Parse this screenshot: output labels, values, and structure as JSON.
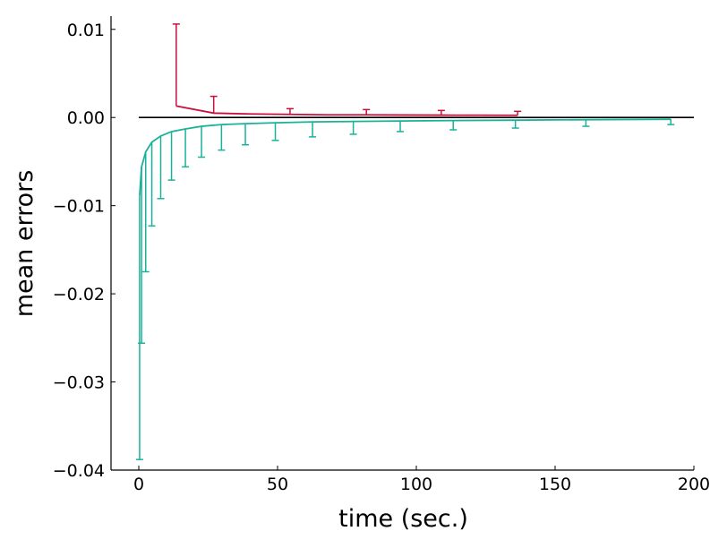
{
  "chart_data": {
    "type": "line",
    "title": "",
    "xlabel": "time (sec.)",
    "ylabel": "mean errors",
    "xlim": [
      -10,
      200
    ],
    "ylim": [
      -0.04,
      0.0115
    ],
    "xticks": [
      0,
      50,
      100,
      150,
      200
    ],
    "xtick_labels": [
      "0",
      "50",
      "100",
      "150",
      "200"
    ],
    "yticks": [
      -0.04,
      -0.03,
      -0.02,
      -0.01,
      0.0,
      0.01
    ],
    "ytick_labels": [
      "−0.04",
      "−0.03",
      "−0.02",
      "−0.01",
      "0.00",
      "0.01"
    ],
    "grid": false,
    "reference_line": {
      "y": 0.0,
      "x_range": [
        0,
        200
      ],
      "color": "#000000"
    },
    "series": [
      {
        "color": "#c8103e",
        "x": [
          13.5,
          27,
          40,
          54.5,
          68,
          82,
          95,
          109,
          122,
          136.5
        ],
        "y": [
          0.0013,
          0.0005,
          0.0004,
          0.00035,
          0.0003,
          0.0003,
          0.00028,
          0.00027,
          0.00026,
          0.00025
        ],
        "error_x": [
          13.5,
          27,
          54.5,
          82,
          109,
          136.5
        ],
        "error_low": [
          0.0013,
          0.0005,
          0.00035,
          0.0003,
          0.00027,
          0.00025
        ],
        "error_high": [
          0.0106,
          0.0024,
          0.001,
          0.0009,
          0.0008,
          0.0007
        ]
      },
      {
        "color": "#1ab29a",
        "x": [
          0.3,
          1,
          2.5,
          4.7,
          7.9,
          11.8,
          16.8,
          22.6,
          29.8,
          38.4,
          49.2,
          62.6,
          77.3,
          94.2,
          113.3,
          135.7,
          161.1,
          191.7
        ],
        "y": [
          -0.0089,
          -0.0056,
          -0.0039,
          -0.0028,
          -0.0021,
          -0.0016,
          -0.0013,
          -0.001,
          -0.0008,
          -0.0007,
          -0.0006,
          -0.0005,
          -0.00045,
          -0.0004,
          -0.00035,
          -0.0003,
          -0.00025,
          -0.0002
        ],
        "error_x": [
          0.3,
          1,
          2.5,
          4.7,
          7.9,
          11.8,
          16.8,
          22.6,
          29.8,
          38.4,
          49.2,
          62.6,
          77.3,
          94.2,
          113.3,
          135.7,
          161.1,
          191.7
        ],
        "error_low": [
          -0.0388,
          -0.0256,
          -0.0175,
          -0.0123,
          -0.0092,
          -0.0071,
          -0.0056,
          -0.0045,
          -0.0037,
          -0.0031,
          -0.0026,
          -0.0022,
          -0.0019,
          -0.0016,
          -0.0014,
          -0.0012,
          -0.001,
          -0.0008
        ],
        "error_high": [
          -0.0089,
          -0.0056,
          -0.0039,
          -0.0028,
          -0.0021,
          -0.0016,
          -0.0013,
          -0.001,
          -0.0008,
          -0.0007,
          -0.0006,
          -0.0005,
          -0.00045,
          -0.0004,
          -0.00035,
          -0.0003,
          -0.00025,
          -0.0002
        ]
      }
    ]
  }
}
